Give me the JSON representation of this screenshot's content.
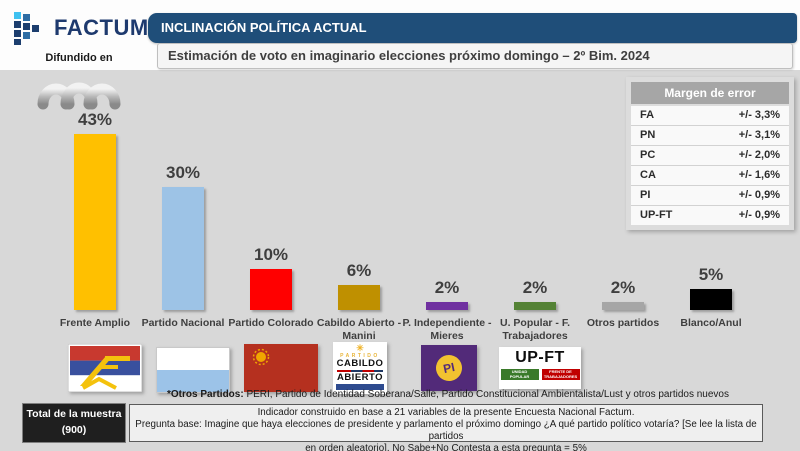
{
  "header": {
    "brand": "FACTUM",
    "diffused_label": "Difundido en",
    "title": "INCLINACIÓN POLÍTICA ACTUAL",
    "subtitle": "Estimación de voto en imaginario elecciones próximo domingo – 2º Bim. 2024"
  },
  "margin_table": {
    "title": "Margen de error",
    "rows": [
      {
        "label": "FA",
        "value": "+/- 3,3%"
      },
      {
        "label": "PN",
        "value": "+/- 3,1%"
      },
      {
        "label": "PC",
        "value": "+/- 2,0%"
      },
      {
        "label": "CA",
        "value": "+/- 1,6%"
      },
      {
        "label": "PI",
        "value": "+/- 0,9%"
      },
      {
        "label": "UP-FT",
        "value": "+/- 0,9%"
      }
    ]
  },
  "chart_data": {
    "type": "bar",
    "title": "Estimación de voto en imaginario elecciones próximo domingo – 2º Bim. 2024",
    "categories": [
      "Frente Amplio",
      "Partido Nacional",
      "Partido Colorado",
      "Cabildo Abierto -\nManini",
      "P. Independiente -\nMieres",
      "U. Popular - F.\nTrabajadores",
      "Otros partidos",
      "Blanco/Anul"
    ],
    "values": [
      43,
      30,
      10,
      6,
      2,
      2,
      2,
      5
    ],
    "value_labels": [
      "43%",
      "30%",
      "10%",
      "6%",
      "2%",
      "2%",
      "2%",
      "5%"
    ],
    "colors": [
      "#FFC000",
      "#9DC3E6",
      "#FF0000",
      "#BF9000",
      "#7030A0",
      "#548235",
      "#A6A6A6",
      "#000000"
    ],
    "xlabel": "",
    "ylabel": "",
    "ylim": [
      0,
      50
    ],
    "grid": false,
    "legend": false
  },
  "party_logos": {
    "pi_text": "PI",
    "upft_title": "UP-FT",
    "upft_chips": [
      "UNIDAD POPULAR",
      "FRENTE DE TRABAJADORES"
    ],
    "cabildo_sun": "✳",
    "cabildo_partido": "PARTIDO",
    "cabildo_line1": "CABILDO",
    "cabildo_line2": "ABIERTO"
  },
  "footnote": {
    "bold": "*Otros Partidos:",
    "rest": " PERI, Partido de Identidad Soberana/Salle, Partido Constitucional Ambientalista/Lust y otros partidos nuevos"
  },
  "sample_box": {
    "line1": "Total de la muestra",
    "line2": "(900)"
  },
  "footer_note": {
    "line1": "Indicador construido en base a 21 variables de la presente Encuesta Nacional Factum.",
    "line2": "Pregunta base: Imagine que haya elecciones de presidente y parlamento el próximo domingo ¿A qué partido político votaría? [Se lee la lista de partidos",
    "line3": "en orden aleatorio]. No Sabe+No Contesta a esta pregunta = 5%"
  }
}
